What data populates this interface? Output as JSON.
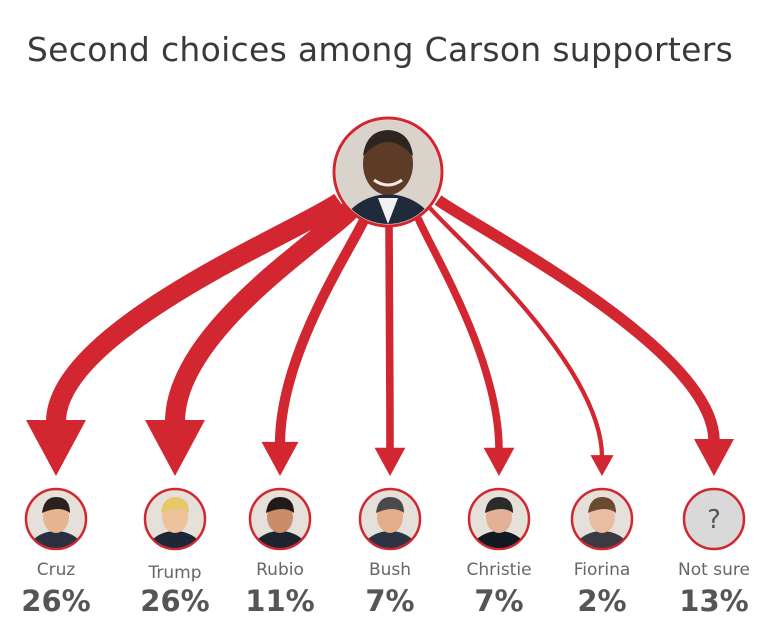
{
  "chart_data": {
    "type": "flow",
    "title": "Second choices among Carson supporters",
    "source_candidate": "Carson",
    "categories": [
      "Cruz",
      "Trump",
      "Rubio",
      "Bush",
      "Christie",
      "Fiorina",
      "Not sure"
    ],
    "values": [
      26,
      26,
      11,
      7,
      7,
      2,
      13
    ],
    "value_labels": [
      "26%",
      "26%",
      "11%",
      "7%",
      "7%",
      "2%",
      "13%"
    ],
    "unknown_symbol": "?",
    "colors": {
      "arrow": "#d22630",
      "text": "#555555",
      "title": "#3a3a3a"
    }
  }
}
